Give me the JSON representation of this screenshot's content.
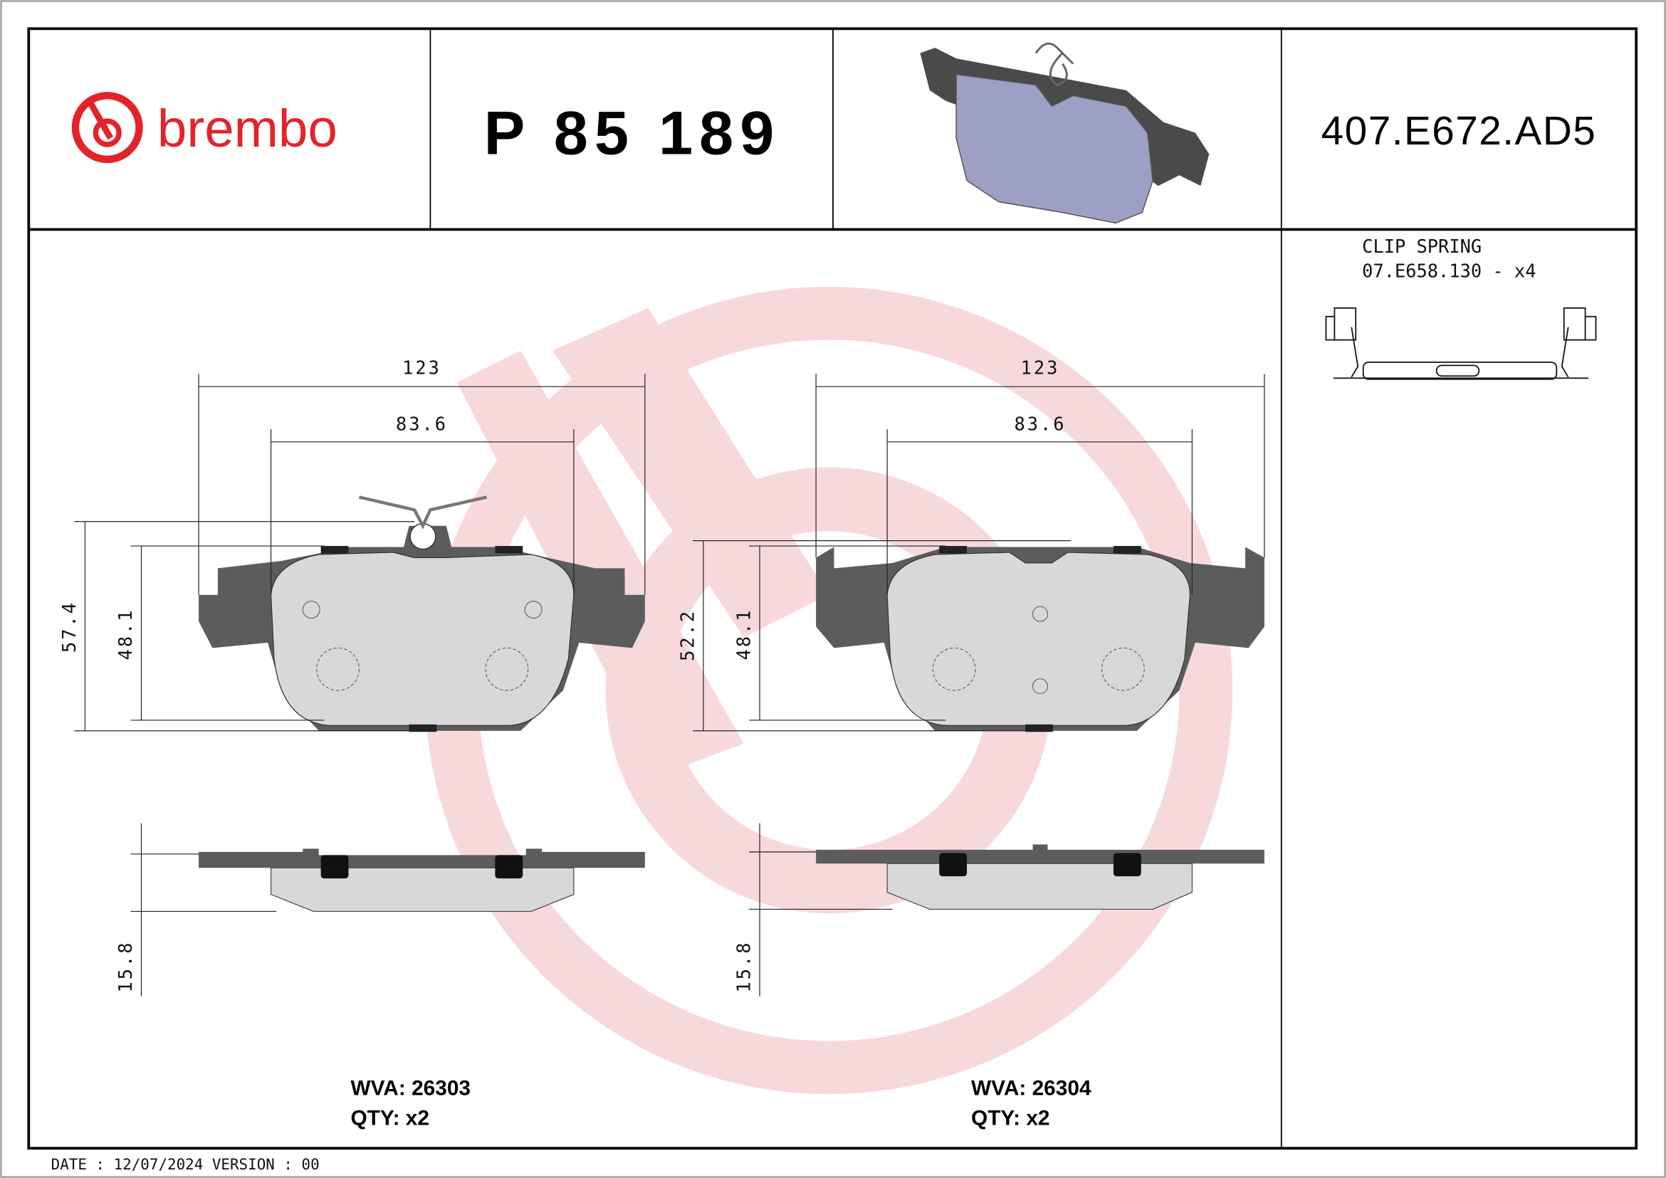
{
  "brand": {
    "name": "brembo",
    "color": "#e3232a"
  },
  "header": {
    "part_number": "P 85 189",
    "reference_code": "407.E672.AD5"
  },
  "accessory": {
    "title": "CLIP SPRING",
    "code": "07.E658.130 - x4"
  },
  "pads": [
    {
      "dims": {
        "width_total": "123",
        "width_inner": "83.6",
        "height_total": "57.4",
        "height_friction": "48.1",
        "thickness": "15.8"
      },
      "wva_label": "WVA: 26303",
      "qty_label": "QTY: x2"
    },
    {
      "dims": {
        "width_total": "123",
        "width_inner": "83.6",
        "height_total": "52.2",
        "height_friction": "48.1",
        "thickness": "15.8"
      },
      "wva_label": "WVA: 26304",
      "qty_label": "QTY: x2"
    }
  ],
  "footer": {
    "date_version": "DATE : 12/07/2024 VERSION : 00"
  },
  "colors": {
    "watermark": "#f7d9dc",
    "backing_plate": "#5c5c5c",
    "friction": "#d8d8d8",
    "render_pad": "#9da0c4"
  }
}
